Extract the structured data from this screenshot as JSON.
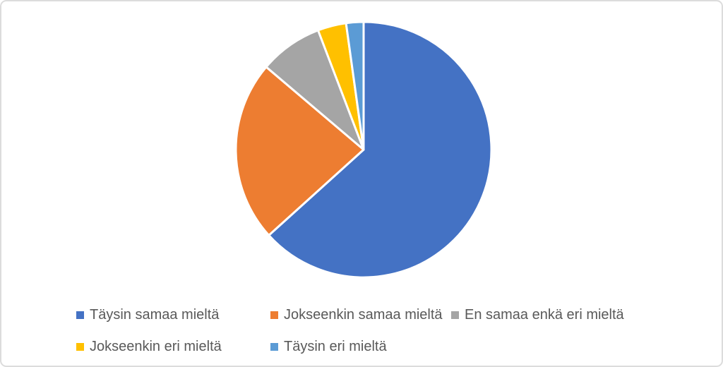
{
  "chart_data": {
    "type": "pie",
    "title": "",
    "categories": [
      "Täysin samaa mieltä",
      "Jokseenkin samaa mieltä",
      "En samaa enkä eri mieltä",
      "Jokseenkin eri mieltä",
      "Täysin eri mieltä"
    ],
    "values": [
      63.3,
      22.9,
      8.0,
      3.6,
      2.2
    ],
    "unit": "percent",
    "colors": [
      "#4472C4",
      "#ED7D31",
      "#A5A5A5",
      "#FFC000",
      "#5B9BD5"
    ],
    "start_angle_deg": 0,
    "direction": "clockwise",
    "slice_separator_color": "#FFFFFF",
    "legend_position": "bottom",
    "legend_text_color": "#595959"
  },
  "canvas": {
    "background": "#FFFFFF",
    "border_color": "#DCDCDC"
  }
}
